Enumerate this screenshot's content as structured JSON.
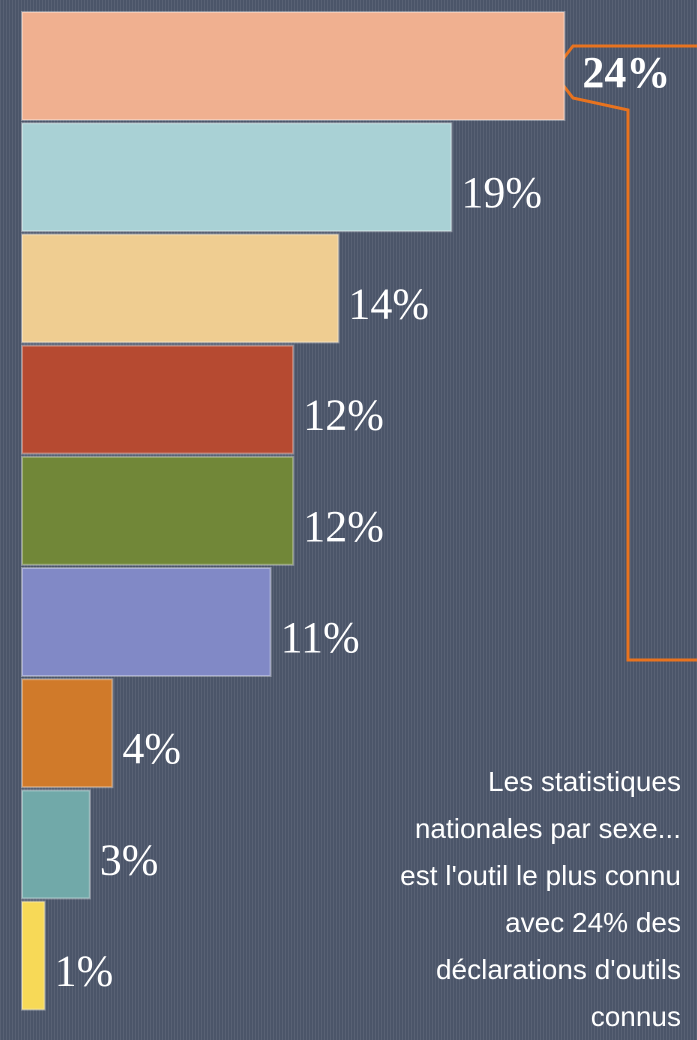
{
  "chart_data": {
    "type": "hbar",
    "values": [
      24,
      19,
      14,
      12,
      12,
      11,
      4,
      3,
      1
    ],
    "value_labels": [
      "24%",
      "19%",
      "14%",
      "12%",
      "12%",
      "11%",
      "4%",
      "3%",
      "1%"
    ],
    "colors": [
      "#f0b090",
      "#a9d1d5",
      "#efcd91",
      "#b64a31",
      "#718738",
      "#8189c6",
      "#d07a2a",
      "#71a9a9",
      "#f7d957"
    ],
    "highlight": 0,
    "annotation_lines": [
      "Les statistiques",
      "nationales par sexe...",
      "est l'outil le plus connu",
      "avec 24% des",
      "déclarations d'outils",
      "connus"
    ]
  }
}
